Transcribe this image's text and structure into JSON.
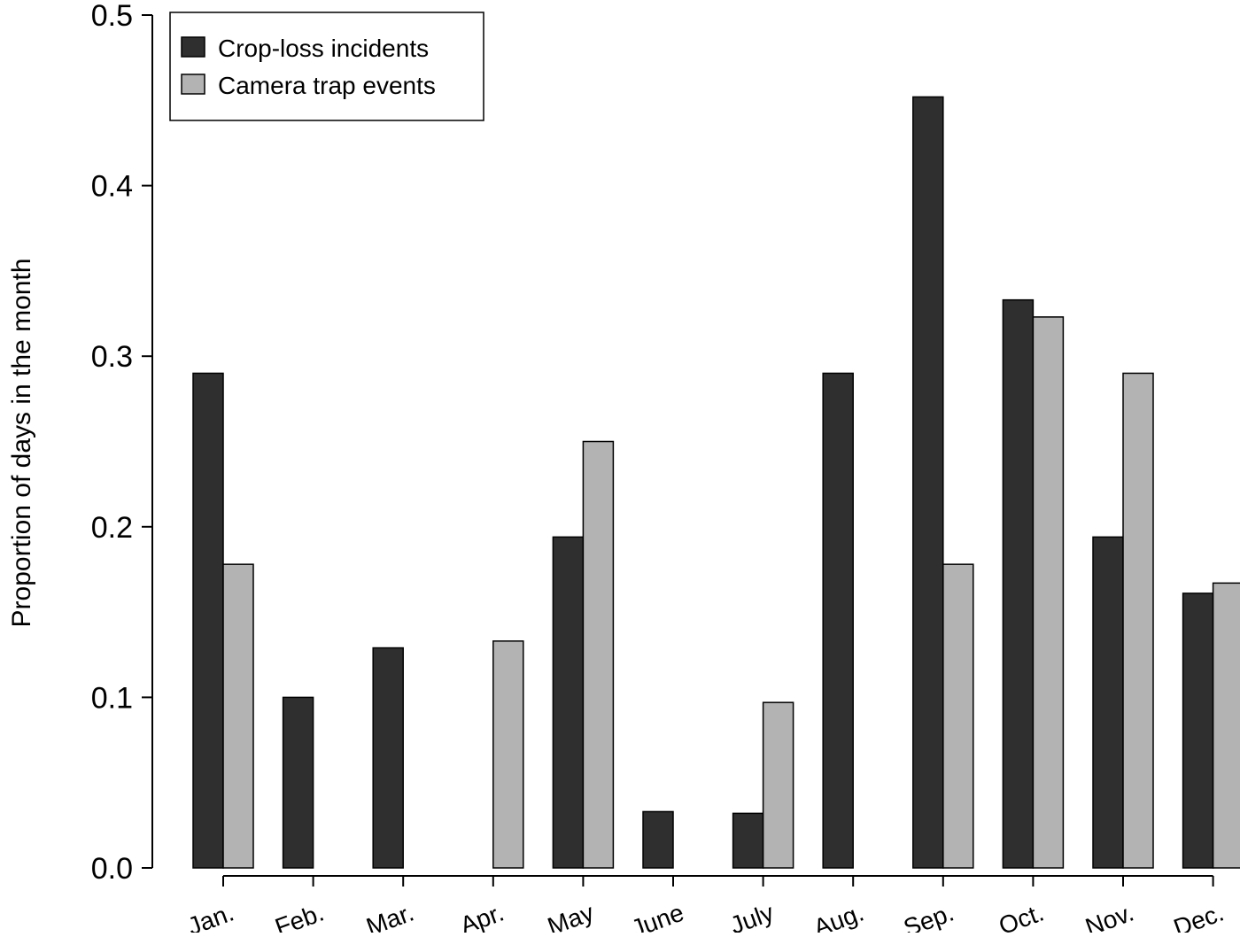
{
  "chart_data": {
    "type": "bar",
    "title": "",
    "xlabel": "",
    "ylabel": "Proportion of days in the month",
    "ylim": [
      0,
      0.5
    ],
    "yticks": [
      "0.0",
      "0.1",
      "0.2",
      "0.3",
      "0.4",
      "0.5"
    ],
    "categories": [
      "Jan.",
      "Feb.",
      "Mar.",
      "Apr.",
      "May",
      "June",
      "July",
      "Aug.",
      "Sep.",
      "Oct.",
      "Nov.",
      "Dec."
    ],
    "series": [
      {
        "name": "Crop-loss incidents",
        "color": "#2f2f2f",
        "values": [
          0.29,
          0.1,
          0.129,
          0.0,
          0.194,
          0.033,
          0.032,
          0.29,
          0.452,
          0.333,
          0.194,
          0.161
        ]
      },
      {
        "name": "Camera trap events",
        "color": "#b3b3b3",
        "values": [
          0.178,
          0.0,
          0.0,
          0.133,
          0.25,
          0.0,
          0.097,
          0.0,
          0.178,
          0.323,
          0.29,
          0.167
        ]
      }
    ],
    "grid": false,
    "legend_position": "top-left"
  }
}
